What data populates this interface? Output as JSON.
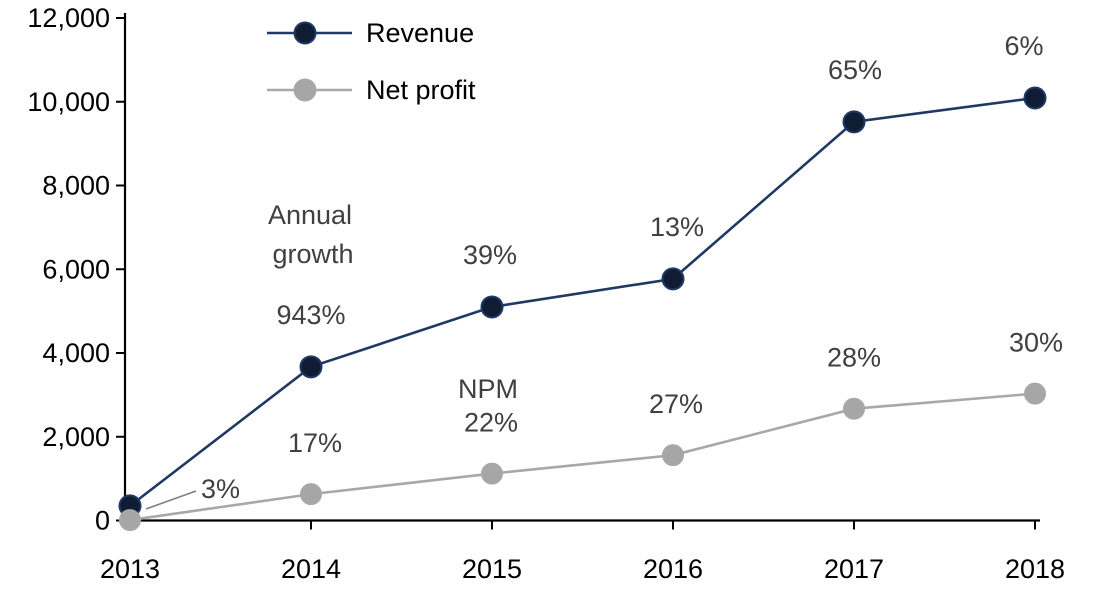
{
  "chart_data": {
    "type": "line",
    "title": "",
    "categories": [
      "2013",
      "2014",
      "2015",
      "2016",
      "2017",
      "2018"
    ],
    "ytick_labels": [
      "0",
      "2,000",
      "4,000",
      "6,000",
      "8,000",
      "10,000",
      "12,000"
    ],
    "ylim": [
      0,
      12000
    ],
    "ytick_step": 2000,
    "grid": false,
    "legend_position": "top-left-inside",
    "axis_color": "#000000",
    "label_color": "#404040",
    "series": [
      {
        "name": "Revenue",
        "line_color": "#1f3864",
        "marker_color": "#101c33",
        "values": [
          350,
          3670,
          5100,
          5770,
          9520,
          10090
        ],
        "point_labels": [
          "",
          "943%",
          "39%",
          "13%",
          "65%",
          "6%"
        ]
      },
      {
        "name": "Net profit",
        "line_color": "#a8a8a8",
        "marker_color": "#a6a6a6",
        "values": [
          10,
          630,
          1120,
          1560,
          2670,
          3030
        ],
        "point_labels": [
          "3%",
          "17%",
          "22%",
          "27%",
          "28%",
          "30%"
        ]
      }
    ],
    "group_labels": {
      "revenue_labels_title": "Annual growth",
      "netprofit_labels_title": "NPM"
    },
    "callout": {
      "text": "3%",
      "series": "Net profit",
      "category": "2013"
    }
  }
}
